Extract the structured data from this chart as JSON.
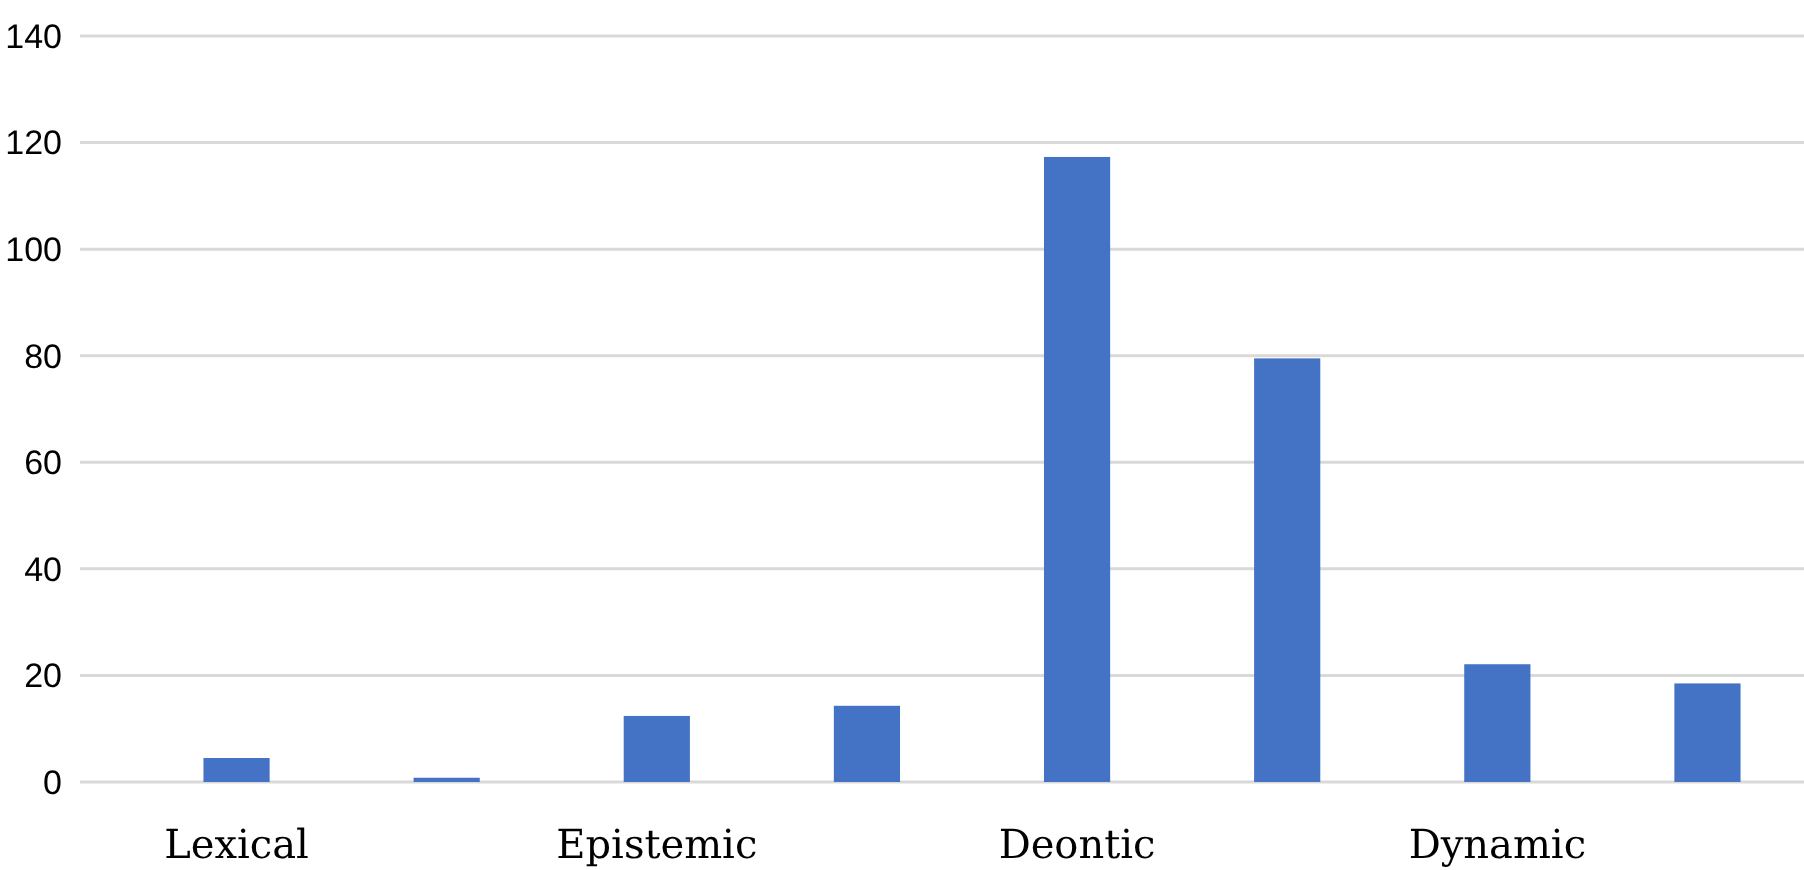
{
  "chart_data": {
    "type": "bar",
    "categories": [
      "Lexical",
      null,
      "Epistemic",
      null,
      "Deontic",
      null,
      "Dynamic",
      null
    ],
    "values": [
      4.5,
      0.8,
      12.4,
      14.3,
      117.3,
      79.5,
      22.1,
      18.5
    ],
    "color": "#4472c4",
    "ylim": [
      0,
      140
    ],
    "yticks": [
      0,
      20,
      40,
      60,
      80,
      100,
      120,
      140
    ],
    "grid": "y"
  }
}
